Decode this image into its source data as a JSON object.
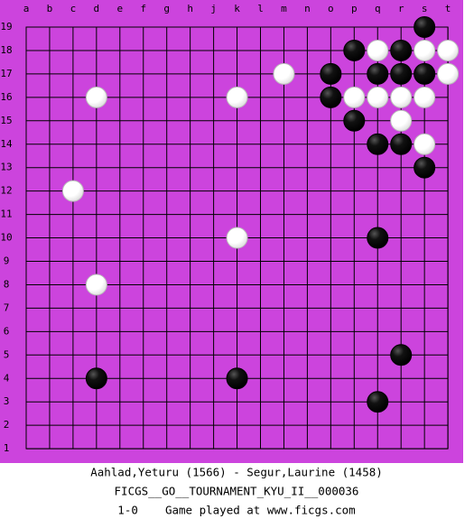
{
  "board": {
    "columns": [
      "a",
      "b",
      "c",
      "d",
      "e",
      "f",
      "g",
      "h",
      "j",
      "k",
      "l",
      "m",
      "n",
      "o",
      "p",
      "q",
      "r",
      "s",
      "t"
    ],
    "rows": [
      "19",
      "18",
      "17",
      "16",
      "15",
      "14",
      "13",
      "12",
      "11",
      "10",
      "9",
      "8",
      "7",
      "6",
      "5",
      "4",
      "3",
      "2",
      "1"
    ],
    "background": "#cc44dd",
    "stones": [
      {
        "color": "black",
        "col": "s",
        "row": "19"
      },
      {
        "color": "black",
        "col": "p",
        "row": "18"
      },
      {
        "color": "white",
        "col": "q",
        "row": "18"
      },
      {
        "color": "black",
        "col": "r",
        "row": "18"
      },
      {
        "color": "white",
        "col": "s",
        "row": "18"
      },
      {
        "color": "white",
        "col": "t",
        "row": "18"
      },
      {
        "color": "white",
        "col": "m",
        "row": "17"
      },
      {
        "color": "black",
        "col": "o",
        "row": "17"
      },
      {
        "color": "black",
        "col": "q",
        "row": "17"
      },
      {
        "color": "black",
        "col": "r",
        "row": "17"
      },
      {
        "color": "black",
        "col": "s",
        "row": "17"
      },
      {
        "color": "white",
        "col": "t",
        "row": "17"
      },
      {
        "color": "white",
        "col": "d",
        "row": "16"
      },
      {
        "color": "white",
        "col": "k",
        "row": "16"
      },
      {
        "color": "black",
        "col": "o",
        "row": "16"
      },
      {
        "color": "white",
        "col": "p",
        "row": "16"
      },
      {
        "color": "white",
        "col": "q",
        "row": "16"
      },
      {
        "color": "white",
        "col": "r",
        "row": "16"
      },
      {
        "color": "white",
        "col": "s",
        "row": "16"
      },
      {
        "color": "black",
        "col": "p",
        "row": "15"
      },
      {
        "color": "white",
        "col": "r",
        "row": "15"
      },
      {
        "color": "black",
        "col": "q",
        "row": "14"
      },
      {
        "color": "black",
        "col": "r",
        "row": "14"
      },
      {
        "color": "white",
        "col": "s",
        "row": "14"
      },
      {
        "color": "black",
        "col": "s",
        "row": "13"
      },
      {
        "color": "white",
        "col": "c",
        "row": "12"
      },
      {
        "color": "white",
        "col": "k",
        "row": "10"
      },
      {
        "color": "black",
        "col": "q",
        "row": "10"
      },
      {
        "color": "white",
        "col": "d",
        "row": "8"
      },
      {
        "color": "black",
        "col": "r",
        "row": "5"
      },
      {
        "color": "black",
        "col": "d",
        "row": "4"
      },
      {
        "color": "black",
        "col": "k",
        "row": "4"
      },
      {
        "color": "black",
        "col": "q",
        "row": "3"
      }
    ]
  },
  "footer": {
    "players": "Aahlad,Yeturu (1566) - Segur,Laurine (1458)",
    "event": "FICGS__GO__TOURNAMENT_KYU_II__000036",
    "result": "1-0    Game played at www.ficgs.com"
  }
}
